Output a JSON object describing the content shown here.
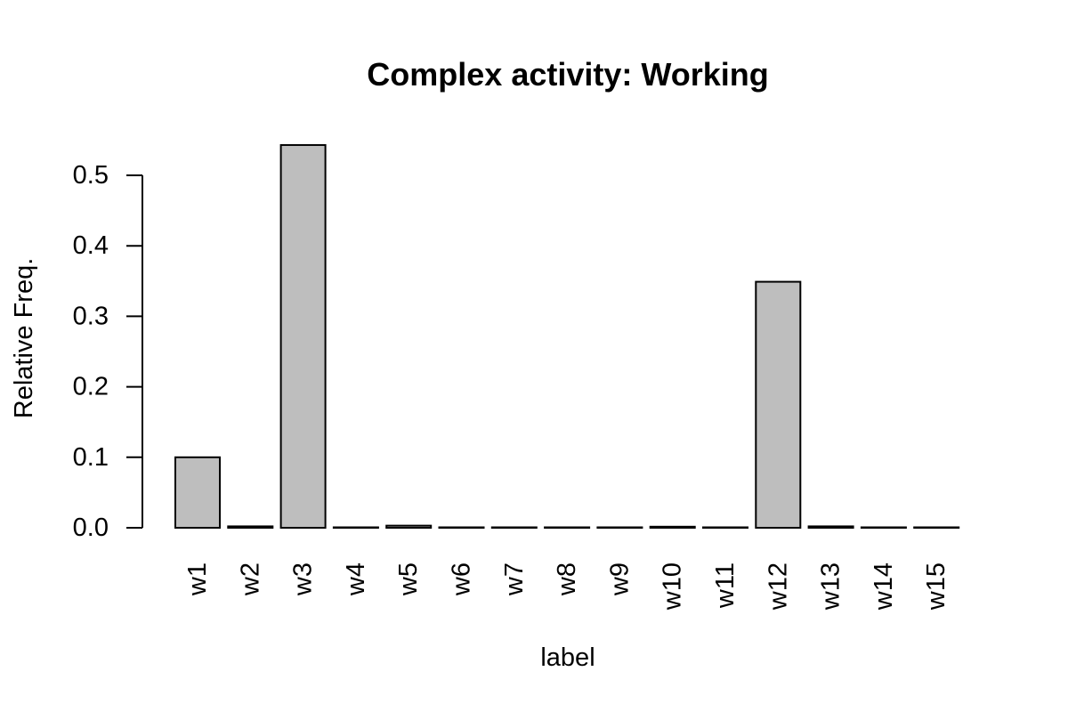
{
  "chart_data": {
    "type": "bar",
    "title": "Complex activity: Working",
    "xlabel": "label",
    "ylabel": "Relative Freq.",
    "categories": [
      "w1",
      "w2",
      "w3",
      "w4",
      "w5",
      "w6",
      "w7",
      "w8",
      "w9",
      "w10",
      "w11",
      "w12",
      "w13",
      "w14",
      "w15"
    ],
    "values": [
      0.1,
      0.002,
      0.543,
      0.0005,
      0.003,
      0.0005,
      0.0005,
      0.0005,
      0.0005,
      0.0015,
      0.0005,
      0.349,
      0.002,
      0.0005,
      0.0005
    ],
    "yticks": [
      "0.0",
      "0.1",
      "0.2",
      "0.3",
      "0.4",
      "0.5"
    ],
    "ylim": [
      0,
      0.5
    ],
    "grid": false,
    "bar_color": "#bebebe",
    "bar_border_color": "#000000"
  }
}
